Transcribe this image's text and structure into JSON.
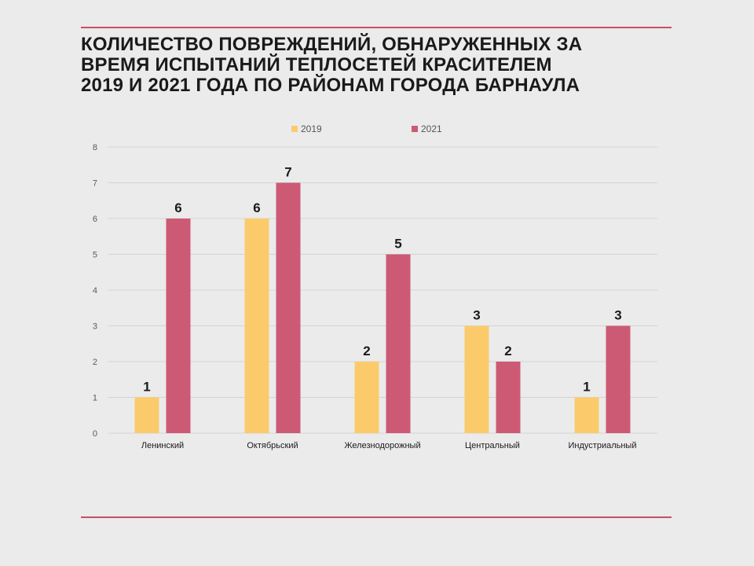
{
  "title_lines": [
    "КОЛИЧЕСТВО ПОВРЕЖДЕНИЙ, ОБНАРУЖЕННЫХ ЗА",
    "ВРЕМЯ ИСПЫТАНИЙ ТЕПЛОСЕТЕЙ КРАСИТЕЛЕМ",
    "2019 И 2021 ГОДА ПО РАЙОНАМ ГОРОДА БАРНАУЛА"
  ],
  "colors": {
    "accent_rule": "#c94f68",
    "series_2019": "#fbcb6b",
    "series_2021": "#cd5a74",
    "grid": "#d4d4d4",
    "text": "#1a1a1a",
    "axis_text": "#595959"
  },
  "chart_data": {
    "type": "bar",
    "title": "КОЛИЧЕСТВО ПОВРЕЖДЕНИЙ, ОБНАРУЖЕННЫХ ЗА ВРЕМЯ ИСПЫТАНИЙ ТЕПЛОСЕТЕЙ КРАСИТЕЛЕМ 2019 И 2021 ГОДА ПО РАЙОНАМ ГОРОДА БАРНАУЛА",
    "categories": [
      "Ленинский",
      "Октябрьский",
      "Железнодорожный",
      "Центральный",
      "Индустриальный"
    ],
    "series": [
      {
        "name": "2019",
        "values": [
          1,
          6,
          2,
          3,
          1
        ]
      },
      {
        "name": "2021",
        "values": [
          6,
          7,
          5,
          2,
          3
        ]
      }
    ],
    "y_ticks": [
      "0",
      "1",
      "2",
      "3",
      "4",
      "5",
      "6",
      "7",
      "8"
    ],
    "ylim": [
      0,
      8
    ],
    "xlabel": "",
    "ylabel": "",
    "grid": true,
    "legend": "top-center",
    "data_labels": true
  }
}
